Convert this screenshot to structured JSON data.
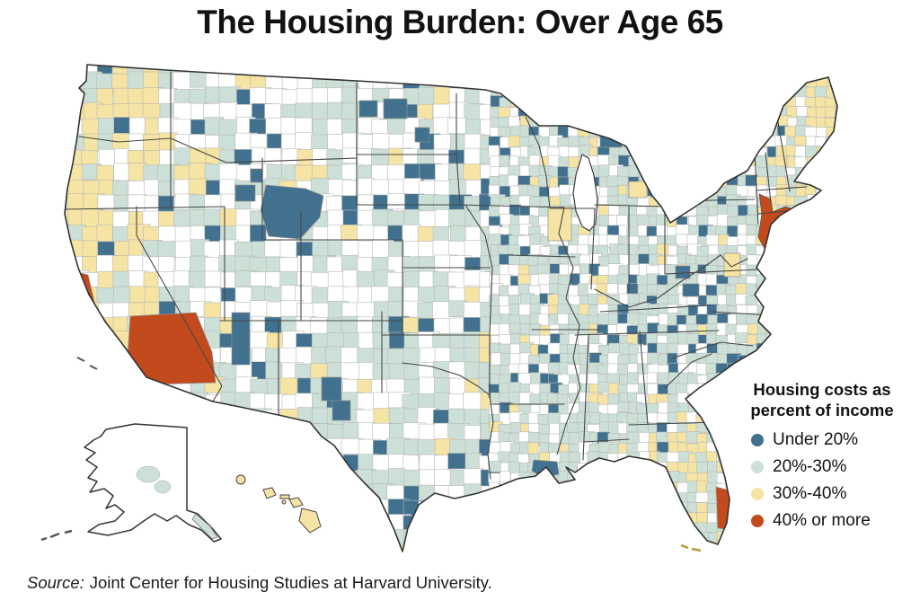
{
  "title": "The Housing Burden: Over Age 65",
  "legend": {
    "title_line1": "Housing costs as",
    "title_line2": "percent of income",
    "items": [
      {
        "label": "Under 20%",
        "color": "#41718f"
      },
      {
        "label": "20%-30%",
        "color": "#cde0d7"
      },
      {
        "label": "30%-40%",
        "color": "#f6e4a4"
      },
      {
        "label": "40% or more",
        "color": "#c24a1d"
      }
    ]
  },
  "source": {
    "prefix": "Source:",
    "text": "Joint Center for Housing Studies at Harvard University."
  },
  "chart_data": {
    "type": "heatmap",
    "subtype": "US county choropleth map (lower 48 with Alaska and Hawaii insets)",
    "title": "The Housing Burden: Over Age 65",
    "legend_title": "Housing costs as percent of income",
    "legend_position": "right",
    "categories": [
      "Under 20%",
      "20%-30%",
      "30%-40%",
      "40% or more"
    ],
    "colors": [
      "#41718f",
      "#cde0d7",
      "#f6e4a4",
      "#c24a1d"
    ],
    "observations": [
      "20%-30% (pale teal) is the most common category across the Midwest, South and East",
      "30%-40% (pale yellow) dominates the Pacific coast (CA, OR, WA), New England, Hawaii, Maryland/Chesapeake and much of Florida",
      "Under 20% (dark blue) appears as scattered counties in Montana, Wyoming, the Dakotas, Idaho, New Mexico, Texas, the Midwest, West Virginia and northern New York",
      "40% or more (orange-red) appears in southern California (San Bernardino area), the central California coast, the New Jersey / New York City metro area, and southeast Florida (Miami area)",
      "Large parts of the interior West, Great Plains, Maine and Alaska are uncolored (white)"
    ],
    "source": "Joint Center for Housing Studies at Harvard University."
  }
}
